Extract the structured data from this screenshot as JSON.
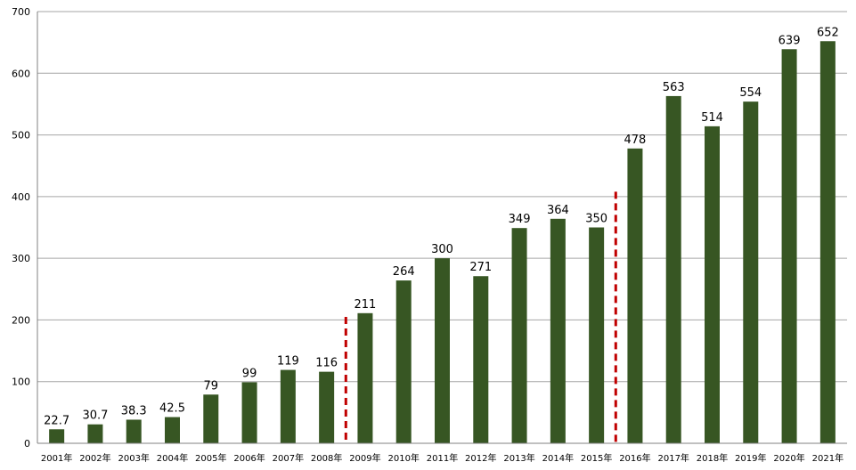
{
  "chart_data": {
    "type": "bar",
    "categories": [
      "2001年",
      "2002年",
      "2003年",
      "2004年",
      "2005年",
      "2006年",
      "2007年",
      "2008年",
      "2009年",
      "2010年",
      "2011年",
      "2012年",
      "2013年",
      "2014年",
      "2015年",
      "2016年",
      "2017年",
      "2018年",
      "2019年",
      "2020年",
      "2021年"
    ],
    "values": [
      22.7,
      30.7,
      38.3,
      42.5,
      79,
      99,
      119,
      116,
      211,
      264,
      300,
      271,
      349,
      364,
      350,
      478,
      563,
      514,
      554,
      639,
      652
    ],
    "data_labels": [
      "22.7",
      "30.7",
      "38.3",
      "42.5",
      "79",
      "99",
      "119",
      "116",
      "211",
      "264",
      "300",
      "271",
      "349",
      "364",
      "350",
      "478",
      "563",
      "514",
      "554",
      "639",
      "652"
    ],
    "ylim": [
      0,
      700
    ],
    "yticks": [
      "0",
      "100",
      "200",
      "300",
      "400",
      "500",
      "600",
      "700"
    ],
    "grid": true,
    "title": "",
    "xlabel": "",
    "ylabel": "",
    "bar_color": "#375623",
    "markers": [
      {
        "between": [
          "2008年",
          "2009年"
        ],
        "top_value": 205,
        "color": "#c00000",
        "style": "dashed"
      },
      {
        "between": [
          "2015年",
          "2016年"
        ],
        "top_value": 408,
        "color": "#c00000",
        "style": "dashed"
      }
    ]
  }
}
